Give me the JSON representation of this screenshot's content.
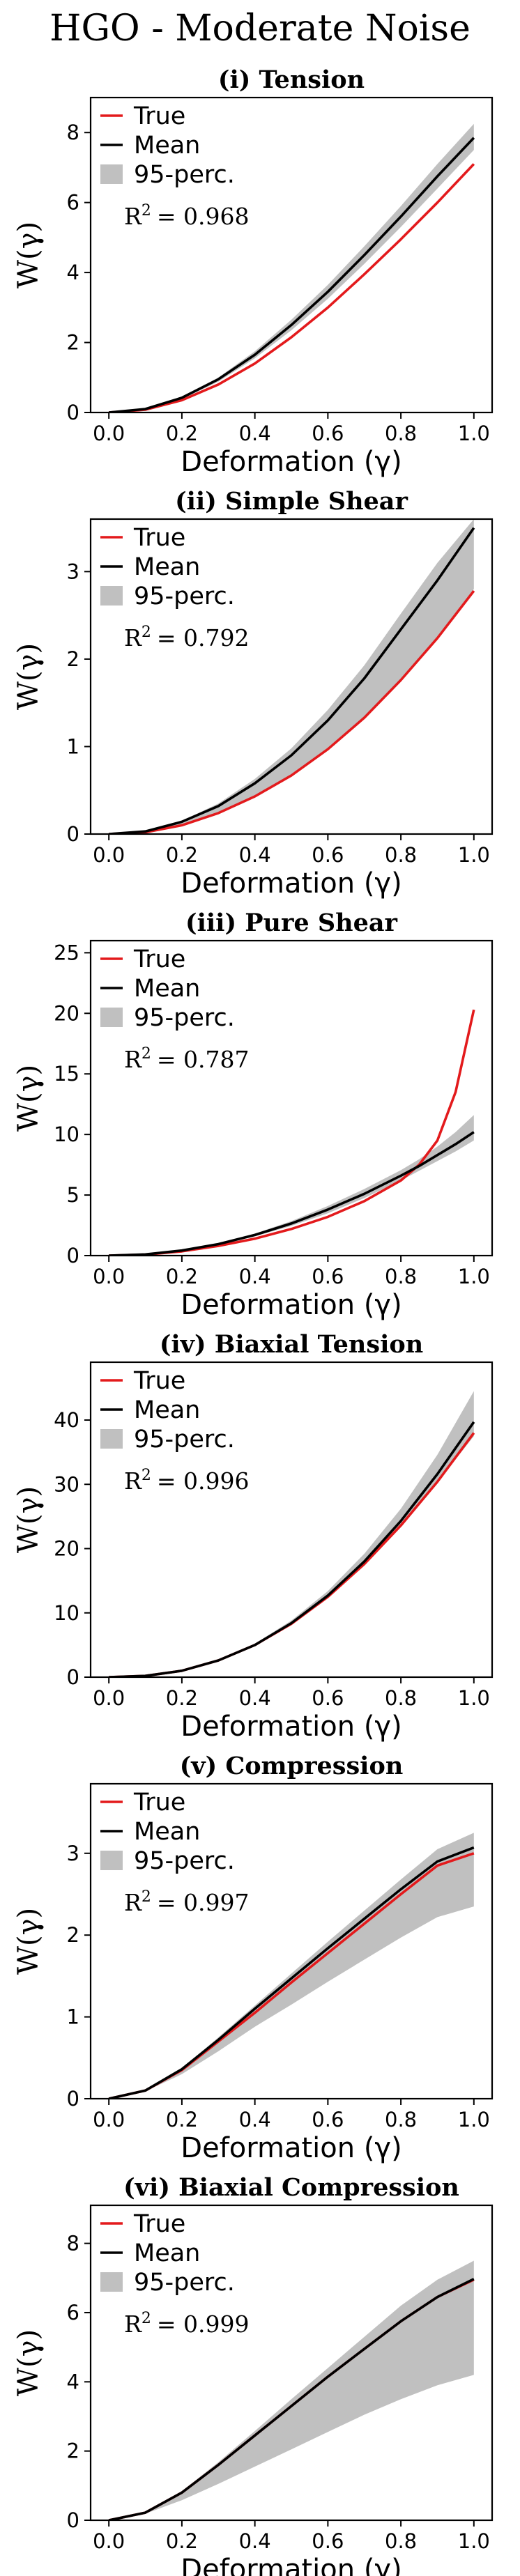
{
  "figure": {
    "title": "HGO - Moderate Noise",
    "colors": {
      "true": "#e31a1c",
      "mean": "#000000",
      "band": "#c0c0c0",
      "axis": "#000000"
    }
  },
  "chart_data": [
    {
      "type": "line",
      "title": "(i) Tension",
      "xlabel": "Deformation (γ)",
      "ylabel": "W(γ)",
      "xlim": [
        -0.05,
        1.05
      ],
      "ylim": [
        0,
        9
      ],
      "xticks": [
        0.0,
        0.2,
        0.4,
        0.6,
        0.8,
        1.0
      ],
      "xtick_labels": [
        "0.0",
        "0.2",
        "0.4",
        "0.6",
        "0.8",
        "1.0"
      ],
      "yticks": [
        0,
        2,
        4,
        6,
        8
      ],
      "ytick_labels": [
        "0",
        "2",
        "4",
        "6",
        "8"
      ],
      "legend": [
        "True",
        "Mean",
        "95-perc."
      ],
      "legend_location": "upper-left",
      "r2_label": "R",
      "r2_value": "= 0.968",
      "x": [
        0.0,
        0.1,
        0.2,
        0.3,
        0.4,
        0.5,
        0.6,
        0.7,
        0.8,
        0.9,
        1.0
      ],
      "series": [
        {
          "name": "True",
          "values": [
            0.0,
            0.08,
            0.35,
            0.8,
            1.4,
            2.15,
            3.0,
            3.95,
            4.95,
            6.0,
            7.1
          ]
        },
        {
          "name": "Mean",
          "values": [
            0.0,
            0.1,
            0.42,
            0.95,
            1.65,
            2.5,
            3.45,
            4.5,
            5.6,
            6.75,
            7.85
          ]
        }
      ],
      "band": {
        "name": "95-perc.",
        "lower": [
          0.0,
          0.09,
          0.38,
          0.88,
          1.55,
          2.35,
          3.25,
          4.25,
          5.3,
          6.4,
          7.5
        ],
        "upper": [
          0.0,
          0.11,
          0.45,
          1.0,
          1.75,
          2.65,
          3.65,
          4.75,
          5.9,
          7.1,
          8.25
        ]
      }
    },
    {
      "type": "line",
      "title": "(ii) Simple Shear",
      "xlabel": "Deformation (γ)",
      "ylabel": "W(γ)",
      "xlim": [
        -0.05,
        1.05
      ],
      "ylim": [
        0,
        3.6
      ],
      "xticks": [
        0.0,
        0.2,
        0.4,
        0.6,
        0.8,
        1.0
      ],
      "xtick_labels": [
        "0.0",
        "0.2",
        "0.4",
        "0.6",
        "0.8",
        "1.0"
      ],
      "yticks": [
        0,
        1,
        2,
        3
      ],
      "ytick_labels": [
        "0",
        "1",
        "2",
        "3"
      ],
      "legend": [
        "True",
        "Mean",
        "95-perc."
      ],
      "legend_location": "upper-left",
      "r2_label": "R",
      "r2_value": "= 0.792",
      "x": [
        0.0,
        0.1,
        0.2,
        0.3,
        0.4,
        0.5,
        0.6,
        0.7,
        0.8,
        0.9,
        1.0
      ],
      "series": [
        {
          "name": "True",
          "values": [
            0.0,
            0.02,
            0.1,
            0.24,
            0.43,
            0.67,
            0.97,
            1.33,
            1.76,
            2.24,
            2.78
          ]
        },
        {
          "name": "Mean",
          "values": [
            0.0,
            0.03,
            0.14,
            0.32,
            0.58,
            0.9,
            1.3,
            1.78,
            2.34,
            2.9,
            3.5
          ]
        }
      ],
      "band": {
        "name": "95-perc.",
        "lower": [
          0.0,
          0.02,
          0.1,
          0.24,
          0.44,
          0.68,
          0.98,
          1.34,
          1.77,
          2.25,
          2.8
        ],
        "upper": [
          0.0,
          0.03,
          0.15,
          0.35,
          0.63,
          0.98,
          1.42,
          1.93,
          2.52,
          3.1,
          3.6
        ]
      }
    },
    {
      "type": "line",
      "title": "(iii) Pure Shear",
      "xlabel": "Deformation (γ)",
      "ylabel": "W(γ)",
      "xlim": [
        -0.05,
        1.05
      ],
      "ylim": [
        0,
        26
      ],
      "xticks": [
        0.0,
        0.2,
        0.4,
        0.6,
        0.8,
        1.0
      ],
      "xtick_labels": [
        "0.0",
        "0.2",
        "0.4",
        "0.6",
        "0.8",
        "1.0"
      ],
      "yticks": [
        0,
        5,
        10,
        15,
        20,
        25
      ],
      "ytick_labels": [
        "0",
        "5",
        "10",
        "15",
        "20",
        "25"
      ],
      "legend": [
        "True",
        "Mean",
        "95-perc."
      ],
      "legend_location": "upper-left",
      "r2_label": "R",
      "r2_value": "= 0.787",
      "x": [
        0.0,
        0.1,
        0.2,
        0.3,
        0.4,
        0.5,
        0.6,
        0.7,
        0.8,
        0.85,
        0.9,
        0.95,
        1.0
      ],
      "series": [
        {
          "name": "True",
          "values": [
            0.0,
            0.08,
            0.35,
            0.8,
            1.4,
            2.2,
            3.2,
            4.5,
            6.2,
            7.5,
            9.5,
            13.5,
            20.3
          ]
        },
        {
          "name": "Mean",
          "values": [
            0.0,
            0.1,
            0.42,
            0.95,
            1.7,
            2.65,
            3.8,
            5.1,
            6.6,
            7.4,
            8.3,
            9.2,
            10.2
          ]
        }
      ],
      "band": {
        "name": "95-perc.",
        "lower": [
          0.0,
          0.09,
          0.38,
          0.88,
          1.58,
          2.45,
          3.5,
          4.75,
          6.2,
          7.0,
          7.8,
          8.6,
          9.5
        ],
        "upper": [
          0.0,
          0.11,
          0.46,
          1.03,
          1.82,
          2.85,
          4.1,
          5.5,
          7.05,
          7.95,
          9.0,
          10.2,
          11.6
        ]
      }
    },
    {
      "type": "line",
      "title": "(iv) Biaxial Tension",
      "xlabel": "Deformation (γ)",
      "ylabel": "W(γ)",
      "xlim": [
        -0.05,
        1.05
      ],
      "ylim": [
        0,
        49
      ],
      "xticks": [
        0.0,
        0.2,
        0.4,
        0.6,
        0.8,
        1.0
      ],
      "xtick_labels": [
        "0.0",
        "0.2",
        "0.4",
        "0.6",
        "0.8",
        "1.0"
      ],
      "yticks": [
        0,
        10,
        20,
        30,
        40
      ],
      "ytick_labels": [
        "0",
        "10",
        "20",
        "30",
        "40"
      ],
      "legend": [
        "True",
        "Mean",
        "95-perc."
      ],
      "legend_location": "upper-left",
      "r2_label": "R",
      "r2_value": "= 0.996",
      "x": [
        0.0,
        0.1,
        0.2,
        0.3,
        0.4,
        0.5,
        0.6,
        0.7,
        0.8,
        0.9,
        1.0
      ],
      "series": [
        {
          "name": "True",
          "values": [
            0.0,
            0.2,
            1.0,
            2.6,
            5.0,
            8.3,
            12.5,
            17.6,
            23.6,
            30.4,
            38.0
          ]
        },
        {
          "name": "Mean",
          "values": [
            0.0,
            0.2,
            1.0,
            2.6,
            5.0,
            8.4,
            12.7,
            18.0,
            24.3,
            31.6,
            39.7
          ]
        }
      ],
      "band": {
        "name": "95-perc.",
        "lower": [
          0.0,
          0.2,
          0.98,
          2.55,
          4.9,
          8.2,
          12.4,
          17.5,
          23.5,
          30.3,
          37.5
        ],
        "upper": [
          0.0,
          0.21,
          1.05,
          2.7,
          5.2,
          8.8,
          13.4,
          19.2,
          26.2,
          34.6,
          44.5
        ]
      }
    },
    {
      "type": "line",
      "title": "(v) Compression",
      "xlabel": "Deformation (γ)",
      "ylabel": "W(γ)",
      "xlim": [
        -0.05,
        1.05
      ],
      "ylim": [
        0,
        3.85
      ],
      "xticks": [
        0.0,
        0.2,
        0.4,
        0.6,
        0.8,
        1.0
      ],
      "xtick_labels": [
        "0.0",
        "0.2",
        "0.4",
        "0.6",
        "0.8",
        "1.0"
      ],
      "yticks": [
        0,
        1,
        2,
        3
      ],
      "ytick_labels": [
        "0",
        "1",
        "2",
        "3"
      ],
      "legend": [
        "True",
        "Mean",
        "95-perc."
      ],
      "legend_location": "upper-left",
      "r2_label": "R",
      "r2_value": "= 0.997",
      "x": [
        0.0,
        0.1,
        0.2,
        0.3,
        0.4,
        0.5,
        0.6,
        0.7,
        0.8,
        0.9,
        1.0
      ],
      "series": [
        {
          "name": "True",
          "values": [
            0.0,
            0.1,
            0.35,
            0.7,
            1.05,
            1.42,
            1.78,
            2.14,
            2.5,
            2.85,
            3.0
          ]
        },
        {
          "name": "Mean",
          "values": [
            0.0,
            0.1,
            0.36,
            0.72,
            1.1,
            1.47,
            1.84,
            2.2,
            2.56,
            2.9,
            3.07
          ]
        }
      ],
      "band": {
        "name": "95-perc.",
        "lower": [
          0.0,
          0.09,
          0.3,
          0.58,
          0.88,
          1.15,
          1.43,
          1.7,
          1.97,
          2.22,
          2.35
        ],
        "upper": [
          0.0,
          0.1,
          0.37,
          0.75,
          1.14,
          1.53,
          1.92,
          2.3,
          2.68,
          3.05,
          3.25
        ]
      }
    },
    {
      "type": "line",
      "title": "(vi) Biaxial Compression",
      "xlabel": "Deformation (γ)",
      "ylabel": "W(γ)",
      "xlim": [
        -0.05,
        1.05
      ],
      "ylim": [
        0,
        9.1
      ],
      "xticks": [
        0.0,
        0.2,
        0.4,
        0.6,
        0.8,
        1.0
      ],
      "xtick_labels": [
        "0.0",
        "0.2",
        "0.4",
        "0.6",
        "0.8",
        "1.0"
      ],
      "yticks": [
        0,
        2,
        4,
        6,
        8
      ],
      "ytick_labels": [
        "0",
        "2",
        "4",
        "6",
        "8"
      ],
      "legend": [
        "True",
        "Mean",
        "95-perc."
      ],
      "legend_location": "upper-left",
      "r2_label": "R",
      "r2_value": "= 0.999",
      "x": [
        0.0,
        0.1,
        0.2,
        0.3,
        0.4,
        0.5,
        0.6,
        0.7,
        0.8,
        0.9,
        1.0
      ],
      "series": [
        {
          "name": "True",
          "values": [
            0.0,
            0.22,
            0.8,
            1.6,
            2.45,
            3.3,
            4.15,
            4.95,
            5.75,
            6.45,
            6.95
          ]
        },
        {
          "name": "Mean",
          "values": [
            0.0,
            0.22,
            0.8,
            1.6,
            2.45,
            3.3,
            4.15,
            4.95,
            5.75,
            6.45,
            6.97
          ]
        }
      ],
      "band": {
        "name": "95-perc.",
        "lower": [
          0.0,
          0.19,
          0.58,
          1.05,
          1.55,
          2.05,
          2.55,
          3.05,
          3.5,
          3.9,
          4.2
        ],
        "upper": [
          0.0,
          0.23,
          0.84,
          1.68,
          2.58,
          3.5,
          4.4,
          5.3,
          6.2,
          6.95,
          7.5
        ]
      }
    }
  ]
}
